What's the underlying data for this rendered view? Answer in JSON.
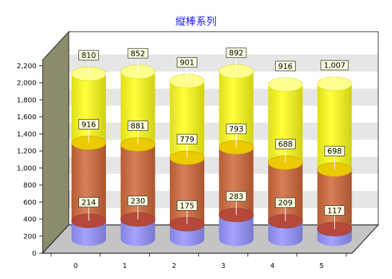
{
  "chart_data": {
    "type": "bar",
    "stacked": true,
    "shape": "cylinder",
    "three_d": true,
    "title": "縦棒系列",
    "title_color": "#1a1aff",
    "categories": [
      "0",
      "1",
      "2",
      "3",
      "4",
      "5"
    ],
    "ylim": [
      0,
      2200
    ],
    "yticks": [
      0,
      200,
      400,
      600,
      800,
      1000,
      1200,
      1400,
      1600,
      1800,
      2000,
      2200
    ],
    "ytick_labels": [
      "0",
      "200",
      "400",
      "600",
      "800",
      "1,000",
      "1,200",
      "1,400",
      "1,600",
      "1,800",
      "2,000",
      "2,200"
    ],
    "grid": true,
    "legend": "none",
    "series": [
      {
        "color": "#9494ff",
        "values": [
          214,
          230,
          175,
          283,
          209,
          117
        ],
        "labels": [
          "214",
          "230",
          "175",
          "283",
          "209",
          "117"
        ]
      },
      {
        "color": "#d0683a",
        "values": [
          916,
          881,
          779,
          793,
          688,
          698
        ],
        "labels": [
          "916",
          "881",
          "779",
          "793",
          "688",
          "698"
        ]
      },
      {
        "color": "#ffff1a",
        "values": [
          810,
          852,
          901,
          892,
          916,
          1007
        ],
        "labels": [
          "810",
          "852",
          "901",
          "892",
          "916",
          "1,007"
        ]
      }
    ]
  }
}
